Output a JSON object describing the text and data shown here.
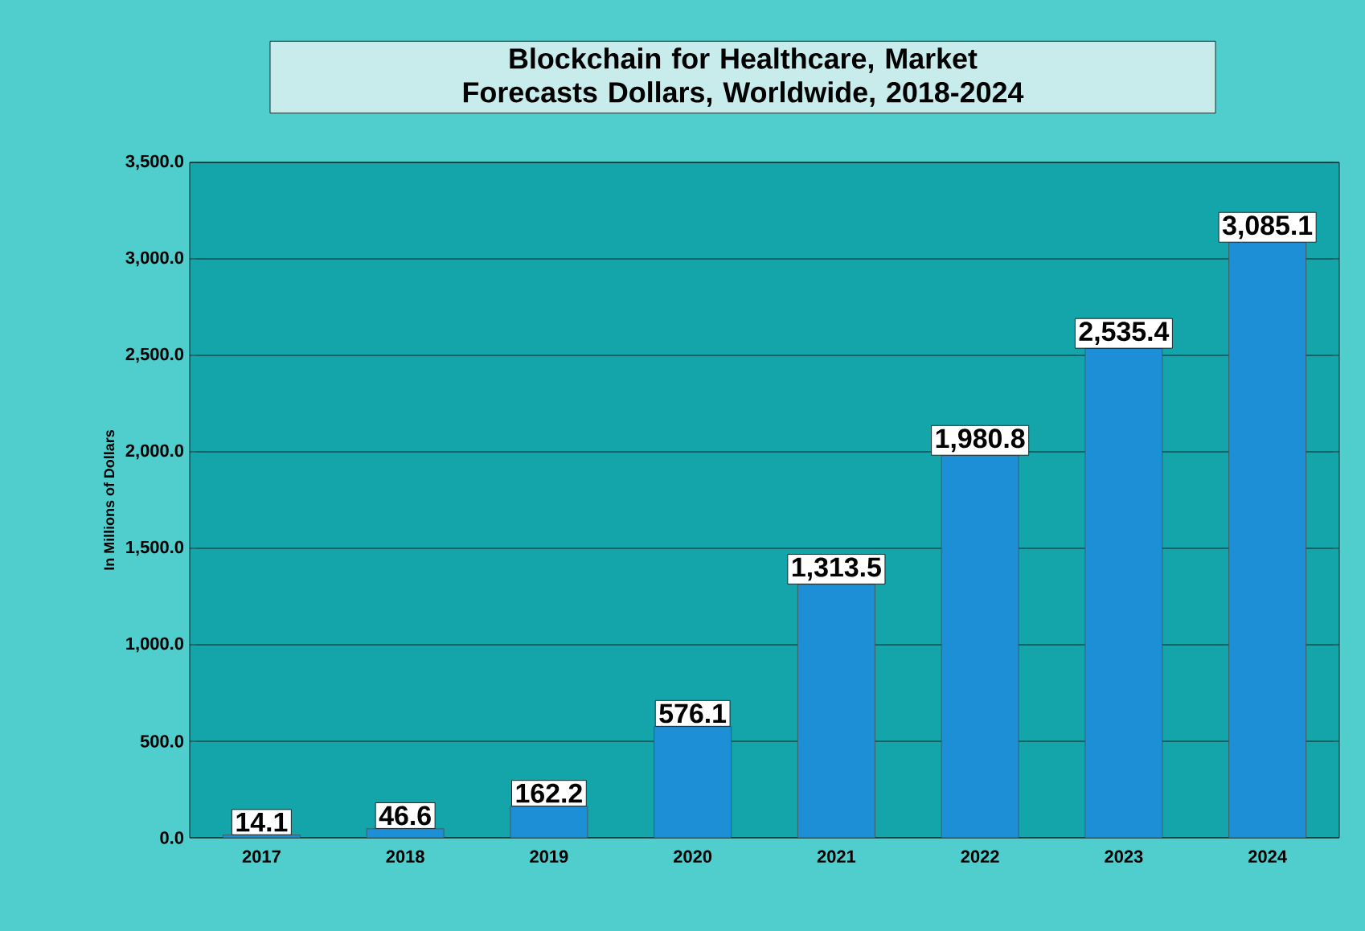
{
  "chart_data": {
    "type": "bar",
    "title": "Blockchain for Healthcare, Market Forecasts Dollars, Worldwide, 2018-2024",
    "ylabel": "In Millions of Dollars",
    "categories": [
      "2017",
      "2018",
      "2019",
      "2020",
      "2021",
      "2022",
      "2023",
      "2024"
    ],
    "values": [
      14.1,
      46.6,
      162.2,
      576.1,
      1313.5,
      1980.8,
      2535.4,
      3085.1
    ],
    "value_labels": [
      "14.1",
      "46.6",
      "162.2",
      "576.1",
      "1,313.5",
      "1,980.8",
      "2,535.4",
      "3,085.1"
    ],
    "color": "#1c8fd6",
    "ylim": [
      0,
      3500
    ],
    "yticks": [
      {
        "value": 0,
        "label": "0.0"
      },
      {
        "value": 500,
        "label": "500.0"
      },
      {
        "value": 1000,
        "label": "1,000.0"
      },
      {
        "value": 1500,
        "label": "1,500.0"
      },
      {
        "value": 2000,
        "label": "2,000.0"
      },
      {
        "value": 2500,
        "label": "2,500.0"
      },
      {
        "value": 3000,
        "label": "3,000.0"
      },
      {
        "value": 3500,
        "label": "3,500.0"
      }
    ],
    "grid": "y"
  }
}
